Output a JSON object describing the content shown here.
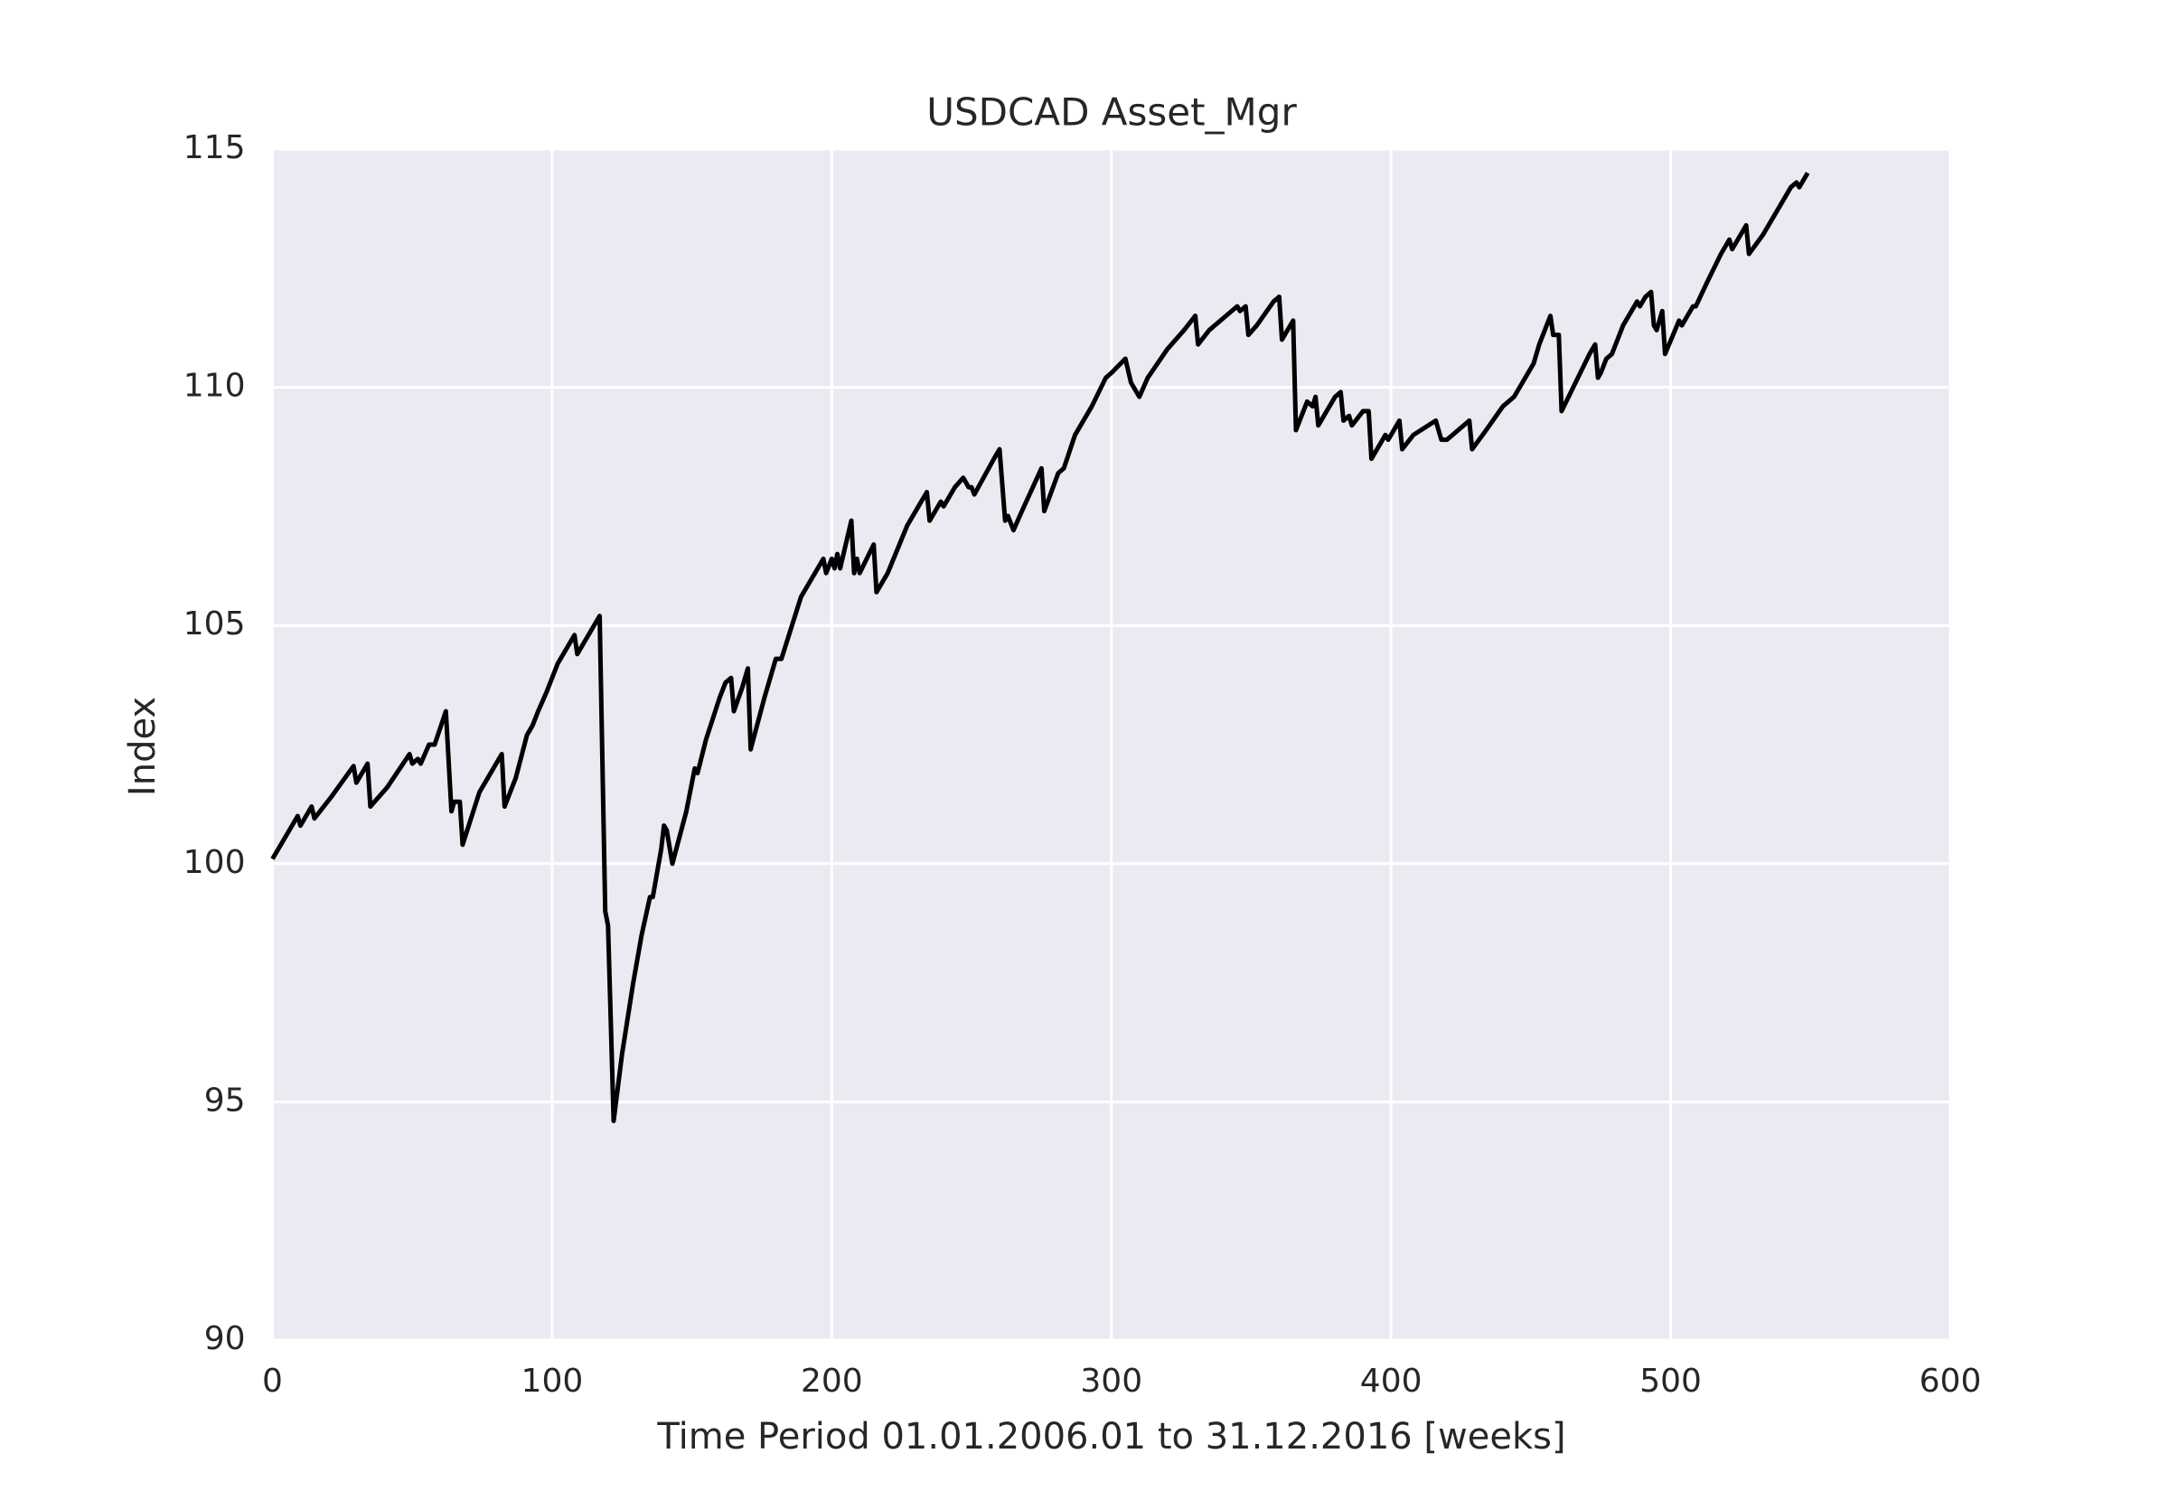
{
  "chart_data": {
    "type": "line",
    "title": "USDCAD Asset_Mgr",
    "xlabel": "Time Period 01.01.2006.01 to 31.12.2016 [weeks]",
    "ylabel": "Index",
    "x": [
      0,
      3,
      9,
      10,
      14,
      15,
      21,
      29,
      30,
      34,
      35,
      41,
      49,
      50,
      52,
      53,
      56,
      58,
      62,
      64,
      65,
      67,
      68,
      74,
      76,
      82,
      83,
      87,
      91,
      92,
      93,
      95,
      98,
      102,
      108,
      109,
      111,
      117,
      119,
      120,
      122,
      125,
      129,
      132,
      135,
      136,
      139,
      140,
      141,
      143,
      148,
      151,
      152,
      155,
      160,
      162,
      164,
      165,
      168,
      170,
      171,
      176,
      180,
      182,
      189,
      197,
      198,
      200,
      201,
      202,
      203,
      207,
      208,
      209,
      210,
      215,
      216,
      220,
      227,
      234,
      235,
      239,
      240,
      244,
      247,
      249,
      250,
      251,
      258,
      260,
      262,
      263,
      265,
      268,
      275,
      276,
      281,
      283,
      287,
      293,
      298,
      300,
      305,
      307,
      308,
      310,
      313,
      320,
      326,
      330,
      331,
      335,
      341,
      345,
      346,
      348,
      349,
      352,
      358,
      360,
      361,
      365,
      366,
      370,
      372,
      373,
      374,
      380,
      382,
      383,
      385,
      386,
      390,
      392,
      393,
      395,
      398,
      399,
      401,
      403,
      404,
      408,
      416,
      418,
      420,
      428,
      429,
      434,
      440,
      444,
      447,
      448,
      451,
      453,
      457,
      458,
      460,
      461,
      466,
      471,
      473,
      474,
      475,
      477,
      479,
      483,
      488,
      489,
      491,
      493,
      494,
      495,
      497,
      498,
      503,
      504,
      506,
      508,
      509,
      513,
      518,
      521,
      522,
      526,
      527,
      528,
      533,
      537,
      543,
      545,
      546,
      549
    ],
    "values": [
      100.1,
      100.4,
      101.0,
      100.8,
      101.2,
      100.95,
      101.4,
      102.05,
      101.7,
      102.1,
      101.2,
      101.6,
      102.3,
      102.1,
      102.2,
      102.1,
      102.5,
      102.5,
      103.2,
      101.1,
      101.3,
      101.3,
      100.4,
      101.5,
      101.7,
      102.3,
      101.2,
      101.8,
      102.7,
      102.8,
      102.9,
      103.2,
      103.6,
      104.2,
      104.8,
      104.4,
      104.6,
      105.2,
      99.0,
      98.7,
      94.6,
      96.0,
      97.5,
      98.5,
      99.3,
      99.3,
      100.3,
      100.8,
      100.7,
      100.0,
      101.1,
      102.0,
      101.9,
      102.6,
      103.5,
      103.8,
      103.9,
      103.2,
      103.7,
      104.1,
      102.4,
      103.5,
      104.3,
      104.3,
      105.6,
      106.4,
      106.1,
      106.4,
      106.2,
      106.5,
      106.2,
      107.2,
      106.1,
      106.4,
      106.1,
      106.7,
      105.7,
      106.1,
      107.1,
      107.8,
      107.2,
      107.6,
      107.5,
      107.9,
      108.1,
      107.9,
      107.9,
      107.75,
      108.5,
      108.7,
      107.2,
      107.3,
      107.0,
      107.4,
      108.3,
      107.4,
      108.2,
      108.3,
      109.0,
      109.6,
      110.2,
      110.3,
      110.6,
      110.1,
      110.0,
      109.8,
      110.2,
      110.8,
      111.2,
      111.5,
      110.9,
      111.2,
      111.5,
      111.7,
      111.6,
      111.7,
      111.1,
      111.3,
      111.8,
      111.9,
      111.0,
      111.4,
      109.1,
      109.7,
      109.6,
      109.8,
      109.2,
      109.8,
      109.9,
      109.3,
      109.4,
      109.2,
      109.5,
      109.5,
      108.5,
      108.7,
      109.0,
      108.9,
      109.1,
      109.3,
      108.7,
      109.0,
      109.3,
      108.9,
      108.9,
      109.3,
      108.7,
      109.1,
      109.6,
      109.8,
      110.1,
      110.2,
      110.5,
      110.9,
      111.5,
      111.1,
      111.1,
      109.5,
      110.1,
      110.7,
      110.9,
      110.2,
      110.3,
      110.6,
      110.7,
      111.3,
      111.8,
      111.7,
      111.9,
      112.0,
      111.3,
      111.2,
      111.6,
      110.7,
      111.4,
      111.3,
      111.5,
      111.7,
      111.7,
      112.2,
      112.8,
      113.1,
      112.9,
      113.3,
      113.4,
      112.8,
      113.2,
      113.6,
      114.2,
      114.3,
      114.2,
      114.5
    ],
    "color": "#000000",
    "background": "#eaeaf2",
    "grid": true,
    "xlim": [
      0,
      600
    ],
    "xticks": [
      0,
      100,
      200,
      300,
      400,
      500,
      600
    ],
    "ylim": [
      90,
      115
    ],
    "yticks": [
      90,
      95,
      100,
      105,
      110,
      115
    ]
  }
}
